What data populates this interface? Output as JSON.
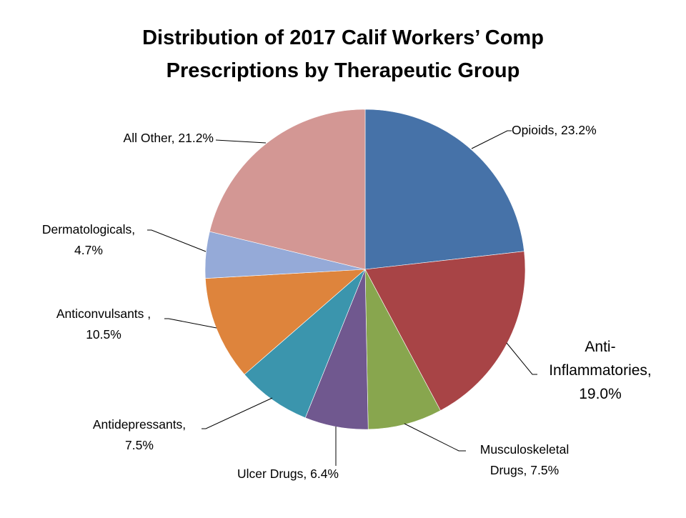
{
  "chart_data": {
    "type": "pie",
    "title": [
      "Distribution of 2017 Calif Workers’ Comp",
      "Prescriptions by Therapeutic Group"
    ],
    "start": "12 o'clock, clockwise",
    "slices": [
      {
        "name": "Opioids",
        "value": 23.2,
        "color": "#4672a8",
        "label": [
          "Opioids, 23.2%"
        ]
      },
      {
        "name": "Anti-Inflammatories",
        "value": 19.0,
        "color": "#a84446",
        "label": [
          "Anti-",
          "Inflammatories,",
          "19.0%"
        ]
      },
      {
        "name": "Musculoskeletal Drugs",
        "value": 7.5,
        "color": "#88a64e",
        "label": [
          "Musculoskeletal",
          "Drugs, 7.5%"
        ]
      },
      {
        "name": "Ulcer Drugs",
        "value": 6.4,
        "color": "#70588f",
        "label": [
          "Ulcer Drugs, 6.4%"
        ]
      },
      {
        "name": "Antidepressants",
        "value": 7.5,
        "color": "#3b95ad",
        "label": [
          "Antidepressants,",
          "7.5%"
        ]
      },
      {
        "name": "Anticonvulsants",
        "value": 10.5,
        "color": "#de843c",
        "label": [
          "Anticonvulsants ,",
          "10.5%"
        ]
      },
      {
        "name": "Dermatologicals",
        "value": 4.7,
        "color": "#95aad8",
        "label": [
          "Dermatologicals,",
          "4.7%"
        ]
      },
      {
        "name": "All Other",
        "value": 21.2,
        "color": "#d39794",
        "label": [
          "All Other, 21.2%"
        ]
      }
    ]
  }
}
